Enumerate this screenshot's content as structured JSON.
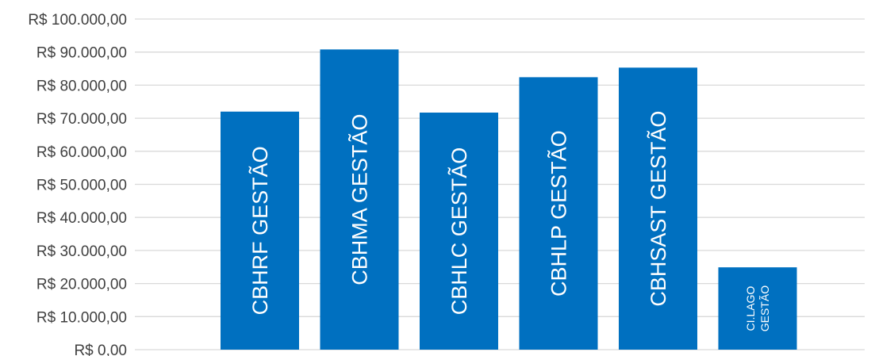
{
  "chart_data": {
    "type": "bar",
    "categories": [
      "CBHRF GESTÃO",
      "CBHMA GESTÃO",
      "CBHLC GESTÃO",
      "CBHLP GESTÃO",
      "CBHSAST GESTÃO",
      "CI.LAGO GESTÃO"
    ],
    "values": [
      72000,
      90800,
      71700,
      82400,
      85300,
      24900
    ],
    "y_ticks": [
      "R$ 0,00",
      "R$ 10.000,00",
      "R$ 20.000,00",
      "R$ 30.000,00",
      "R$ 40.000,00",
      "R$ 50.000,00",
      "R$ 60.000,00",
      "R$ 70.000,00",
      "R$ 80.000,00",
      "R$ 90.000,00",
      "R$ 100.000,00"
    ],
    "ylim": [
      0,
      100000
    ],
    "grid": true,
    "bar_color": "#0070c0",
    "label_color": "#ffffff",
    "title": "",
    "xlabel": "",
    "ylabel": ""
  }
}
